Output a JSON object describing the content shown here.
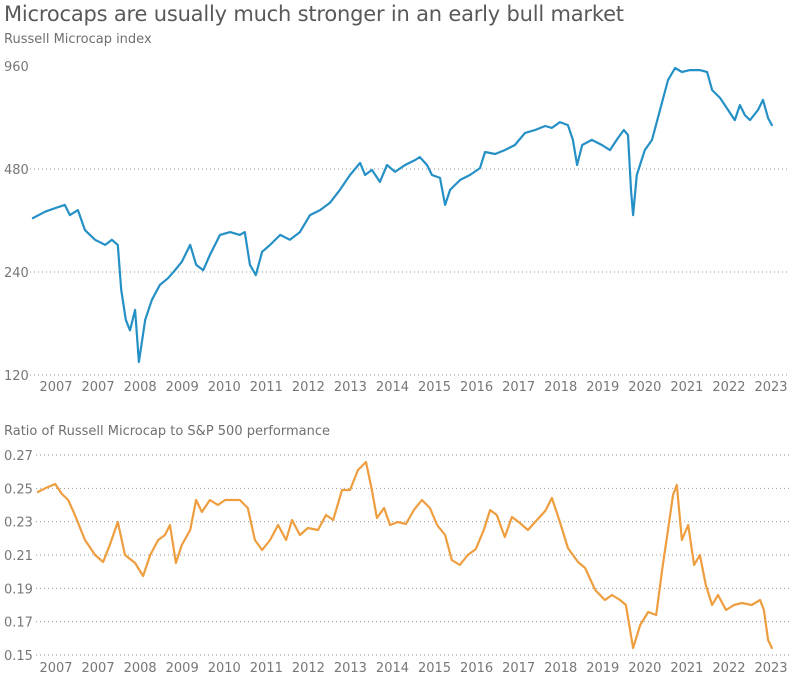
{
  "title": "Microcaps are usually much stronger in an early bull market",
  "colors": {
    "index_line": "#2590c6",
    "ratio_line": "#ee9d3f",
    "grid": "#9a9a9a",
    "text": "#777777"
  },
  "chart_data": [
    {
      "type": "line",
      "title": "Russell Microcap index",
      "yscale": "log",
      "ylim": [
        120,
        960
      ],
      "yticks": [
        960,
        480,
        240,
        120
      ],
      "ytick_labels": [
        "960",
        "480",
        "240",
        "120"
      ],
      "grid": true,
      "x_unit": "tick index (0 = first label)",
      "xlim": [
        -0.55,
        17.4
      ],
      "xtick_labels": [
        "2007",
        "2007",
        "2008",
        "2009",
        "2010",
        "2011",
        "2012",
        "2013",
        "2014",
        "2015",
        "2016",
        "2017",
        "2018",
        "2019",
        "2020",
        "2021",
        "2022",
        "2023"
      ],
      "series": [
        {
          "name": "Russell Microcap index",
          "points": [
            [
              -0.55,
              345
            ],
            [
              -0.26,
              360
            ],
            [
              -0.02,
              369
            ],
            [
              0.21,
              377
            ],
            [
              0.33,
              352
            ],
            [
              0.52,
              364
            ],
            [
              0.69,
              318
            ],
            [
              0.93,
              298
            ],
            [
              1.17,
              288
            ],
            [
              1.33,
              298
            ],
            [
              1.47,
              288
            ],
            [
              1.55,
              213
            ],
            [
              1.66,
              174
            ],
            [
              1.76,
              162
            ],
            [
              1.88,
              186
            ],
            [
              1.97,
              131
            ],
            [
              2.12,
              174
            ],
            [
              2.28,
              199
            ],
            [
              2.47,
              220
            ],
            [
              2.66,
              230
            ],
            [
              2.83,
              243
            ],
            [
              2.99,
              257
            ],
            [
              3.19,
              288
            ],
            [
              3.33,
              252
            ],
            [
              3.5,
              243
            ],
            [
              3.66,
              269
            ],
            [
              3.9,
              308
            ],
            [
              4.14,
              314
            ],
            [
              4.37,
              308
            ],
            [
              4.49,
              314
            ],
            [
              4.61,
              252
            ],
            [
              4.75,
              235
            ],
            [
              4.9,
              275
            ],
            [
              5.09,
              288
            ],
            [
              5.33,
              308
            ],
            [
              5.56,
              298
            ],
            [
              5.8,
              314
            ],
            [
              6.04,
              352
            ],
            [
              6.28,
              364
            ],
            [
              6.51,
              382
            ],
            [
              6.75,
              417
            ],
            [
              6.99,
              461
            ],
            [
              7.23,
              500
            ],
            [
              7.35,
              461
            ],
            [
              7.51,
              477
            ],
            [
              7.7,
              440
            ],
            [
              7.87,
              493
            ],
            [
              8.06,
              471
            ],
            [
              8.3,
              493
            ],
            [
              8.54,
              510
            ],
            [
              8.65,
              520
            ],
            [
              8.82,
              493
            ],
            [
              8.94,
              461
            ],
            [
              9.13,
              452
            ],
            [
              9.25,
              377
            ],
            [
              9.37,
              417
            ],
            [
              9.61,
              446
            ],
            [
              9.84,
              461
            ],
            [
              10.08,
              483
            ],
            [
              10.2,
              538
            ],
            [
              10.44,
              531
            ],
            [
              10.67,
              545
            ],
            [
              10.91,
              564
            ],
            [
              11.15,
              612
            ],
            [
              11.39,
              624
            ],
            [
              11.63,
              641
            ],
            [
              11.79,
              633
            ],
            [
              11.98,
              658
            ],
            [
              12.17,
              645
            ],
            [
              12.29,
              584
            ],
            [
              12.39,
              493
            ],
            [
              12.51,
              564
            ],
            [
              12.74,
              584
            ],
            [
              12.98,
              564
            ],
            [
              13.17,
              545
            ],
            [
              13.36,
              591
            ],
            [
              13.5,
              624
            ],
            [
              13.6,
              603
            ],
            [
              13.67,
              417
            ],
            [
              13.72,
              352
            ],
            [
              13.81,
              461
            ],
            [
              14.0,
              545
            ],
            [
              14.17,
              584
            ],
            [
              14.36,
              714
            ],
            [
              14.55,
              873
            ],
            [
              14.72,
              947
            ],
            [
              14.88,
              922
            ],
            [
              15.07,
              934
            ],
            [
              15.31,
              934
            ],
            [
              15.48,
              922
            ],
            [
              15.6,
              817
            ],
            [
              15.79,
              774
            ],
            [
              15.98,
              714
            ],
            [
              16.14,
              667
            ],
            [
              16.26,
              738
            ],
            [
              16.38,
              690
            ],
            [
              16.5,
              667
            ],
            [
              16.69,
              714
            ],
            [
              16.81,
              764
            ],
            [
              16.93,
              676
            ],
            [
              17.02,
              645
            ]
          ]
        }
      ]
    },
    {
      "type": "line",
      "title": "Ratio of Russell Microcap to S&P 500 performance",
      "yscale": "linear",
      "ylim": [
        0.15,
        0.27
      ],
      "yticks": [
        0.27,
        0.25,
        0.23,
        0.21,
        0.19,
        0.17,
        0.15
      ],
      "ytick_labels": [
        "0.27",
        "0.25",
        "0.23",
        "0.21",
        "0.19",
        "0.17",
        "0.15"
      ],
      "grid": true,
      "x_unit": "tick index (0 = first label)",
      "xlim": [
        -0.55,
        17.4
      ],
      "xtick_labels": [
        "2007",
        "2007",
        "2008",
        "2009",
        "2010",
        "2011",
        "2012",
        "2013",
        "2014",
        "2015",
        "2016",
        "2017",
        "2018",
        "2019",
        "2020",
        "2021",
        "2022",
        "2023"
      ],
      "series": [
        {
          "name": "Microcap / S&P 500 ratio",
          "points": [
            [
              -0.43,
              0.2478
            ],
            [
              -0.26,
              0.25
            ],
            [
              -0.02,
              0.2526
            ],
            [
              0.14,
              0.2466
            ],
            [
              0.29,
              0.243
            ],
            [
              0.45,
              0.234
            ],
            [
              0.69,
              0.219
            ],
            [
              0.93,
              0.21
            ],
            [
              1.12,
              0.2058
            ],
            [
              1.28,
              0.216
            ],
            [
              1.47,
              0.2298
            ],
            [
              1.64,
              0.21
            ],
            [
              1.88,
              0.2052
            ],
            [
              2.07,
              0.1974
            ],
            [
              2.24,
              0.21
            ],
            [
              2.43,
              0.219
            ],
            [
              2.59,
              0.222
            ],
            [
              2.71,
              0.228
            ],
            [
              2.85,
              0.2052
            ],
            [
              2.99,
              0.216
            ],
            [
              3.19,
              0.225
            ],
            [
              3.33,
              0.243
            ],
            [
              3.47,
              0.2358
            ],
            [
              3.66,
              0.243
            ],
            [
              3.85,
              0.24
            ],
            [
              4.02,
              0.243
            ],
            [
              4.18,
              0.243
            ],
            [
              4.37,
              0.243
            ],
            [
              4.56,
              0.2382
            ],
            [
              4.73,
              0.219
            ],
            [
              4.9,
              0.213
            ],
            [
              5.09,
              0.219
            ],
            [
              5.28,
              0.228
            ],
            [
              5.47,
              0.219
            ],
            [
              5.61,
              0.231
            ],
            [
              5.8,
              0.222
            ],
            [
              5.99,
              0.2262
            ],
            [
              6.23,
              0.225
            ],
            [
              6.42,
              0.234
            ],
            [
              6.59,
              0.231
            ],
            [
              6.8,
              0.249
            ],
            [
              6.99,
              0.249
            ],
            [
              7.18,
              0.261
            ],
            [
              7.37,
              0.2658
            ],
            [
              7.51,
              0.249
            ],
            [
              7.63,
              0.2322
            ],
            [
              7.8,
              0.2382
            ],
            [
              7.94,
              0.228
            ],
            [
              8.13,
              0.2298
            ],
            [
              8.32,
              0.2286
            ],
            [
              8.51,
              0.237
            ],
            [
              8.7,
              0.243
            ],
            [
              8.89,
              0.2382
            ],
            [
              9.06,
              0.228
            ],
            [
              9.25,
              0.222
            ],
            [
              9.41,
              0.207
            ],
            [
              9.6,
              0.204
            ],
            [
              9.79,
              0.21
            ],
            [
              9.98,
              0.2136
            ],
            [
              10.17,
              0.225
            ],
            [
              10.32,
              0.237
            ],
            [
              10.48,
              0.234
            ],
            [
              10.67,
              0.2208
            ],
            [
              10.84,
              0.2328
            ],
            [
              11.03,
              0.2292
            ],
            [
              11.22,
              0.225
            ],
            [
              11.39,
              0.2298
            ],
            [
              11.63,
              0.2364
            ],
            [
              11.79,
              0.2442
            ],
            [
              11.98,
              0.2298
            ],
            [
              12.17,
              0.2142
            ],
            [
              12.41,
              0.2058
            ],
            [
              12.58,
              0.2022
            ],
            [
              12.82,
              0.189
            ],
            [
              13.05,
              0.183
            ],
            [
              13.22,
              0.186
            ],
            [
              13.41,
              0.183
            ],
            [
              13.55,
              0.18
            ],
            [
              13.72,
              0.1542
            ],
            [
              13.89,
              0.168
            ],
            [
              14.08,
              0.1758
            ],
            [
              14.27,
              0.174
            ],
            [
              14.41,
              0.201
            ],
            [
              14.55,
              0.225
            ],
            [
              14.67,
              0.246
            ],
            [
              14.76,
              0.252
            ],
            [
              14.88,
              0.219
            ],
            [
              15.03,
              0.228
            ],
            [
              15.17,
              0.204
            ],
            [
              15.31,
              0.21
            ],
            [
              15.45,
              0.192
            ],
            [
              15.6,
              0.18
            ],
            [
              15.74,
              0.186
            ],
            [
              15.93,
              0.177
            ],
            [
              16.12,
              0.18
            ],
            [
              16.31,
              0.1812
            ],
            [
              16.54,
              0.18
            ],
            [
              16.74,
              0.183
            ],
            [
              16.83,
              0.177
            ],
            [
              16.93,
              0.159
            ],
            [
              17.02,
              0.1542
            ]
          ]
        }
      ]
    }
  ]
}
